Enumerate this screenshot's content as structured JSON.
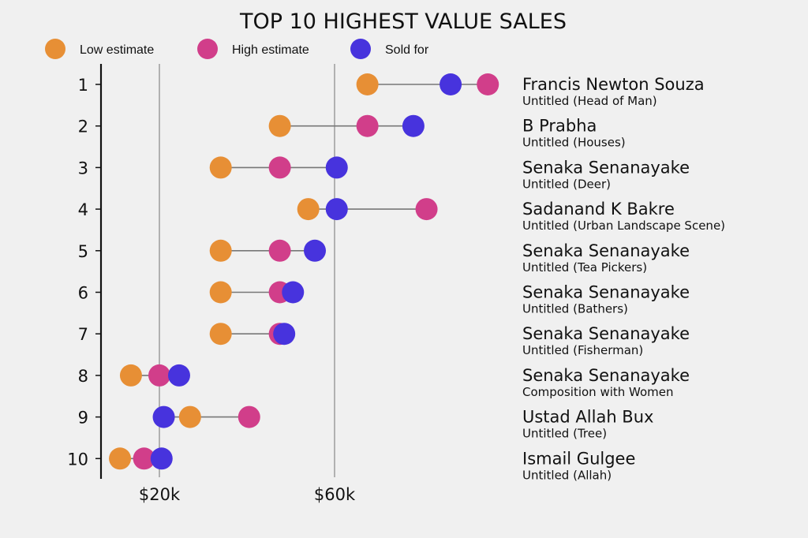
{
  "chart_data": {
    "type": "scatter",
    "subtype": "dumbbell",
    "title": "TOP 10 HIGHEST VALUE SALES",
    "xlabel": "",
    "ylabel": "",
    "xlim": [
      -16,
      100
    ],
    "xticks": [
      20,
      60
    ],
    "xtick_labels": [
      "$20k",
      "$60k"
    ],
    "grid": "vertical at x ticks",
    "legend": {
      "placement": "top-left",
      "entries": [
        {
          "key": "low",
          "label": "Low estimate",
          "color": "#e78f35"
        },
        {
          "key": "high",
          "label": "High estimate",
          "color": "#d13e8a"
        },
        {
          "key": "sold",
          "label": "Sold for",
          "color": "#4733dd"
        }
      ]
    },
    "categories": [
      "1",
      "2",
      "3",
      "4",
      "5",
      "6",
      "7",
      "8",
      "9",
      "10"
    ],
    "rows": [
      {
        "rank": "1",
        "artist": "Francis Newton Souza",
        "work": "Untitled (Head of Man)",
        "low": 67.5,
        "high": 95,
        "sold": 86.5
      },
      {
        "rank": "2",
        "artist": "B Prabha",
        "work": "Untitled (Houses)",
        "low": 47.5,
        "high": 67.5,
        "sold": 78
      },
      {
        "rank": "3",
        "artist": "Senaka Senanayake",
        "work": "Untitled (Deer)",
        "low": 34,
        "high": 47.5,
        "sold": 60.5
      },
      {
        "rank": "4",
        "artist": "Sadanand K Bakre",
        "work": "Untitled (Urban Landscape Scene)",
        "low": 54,
        "high": 81,
        "sold": 60.5
      },
      {
        "rank": "5",
        "artist": "Senaka Senanayake",
        "work": "Untitled (Tea Pickers)",
        "low": 34,
        "high": 47.5,
        "sold": 55.5
      },
      {
        "rank": "6",
        "artist": "Senaka Senanayake",
        "work": "Untitled (Bathers)",
        "low": 34,
        "high": 47.5,
        "sold": 50.5
      },
      {
        "rank": "7",
        "artist": "Senaka Senanayake",
        "work": "Untitled (Fisherman)",
        "low": 34,
        "high": 47.5,
        "sold": 48.5
      },
      {
        "rank": "8",
        "artist": "Senaka Senanayake",
        "work": "Composition with Women",
        "low": 13.5,
        "high": 20,
        "sold": 24.5
      },
      {
        "rank": "9",
        "artist": "Ustad Allah Bux",
        "work": "Untitled (Tree)",
        "low": 27,
        "high": 40.5,
        "sold": 21
      },
      {
        "rank": "10",
        "artist": "Ismail Gulgee",
        "work": "Untitled (Allah)",
        "low": 11,
        "high": 16.5,
        "sold": 20.5
      }
    ],
    "colors": {
      "background": "#f0f0f0",
      "gridline": "#aaaaaa",
      "connector": "#777777",
      "axis": "#111111"
    }
  }
}
